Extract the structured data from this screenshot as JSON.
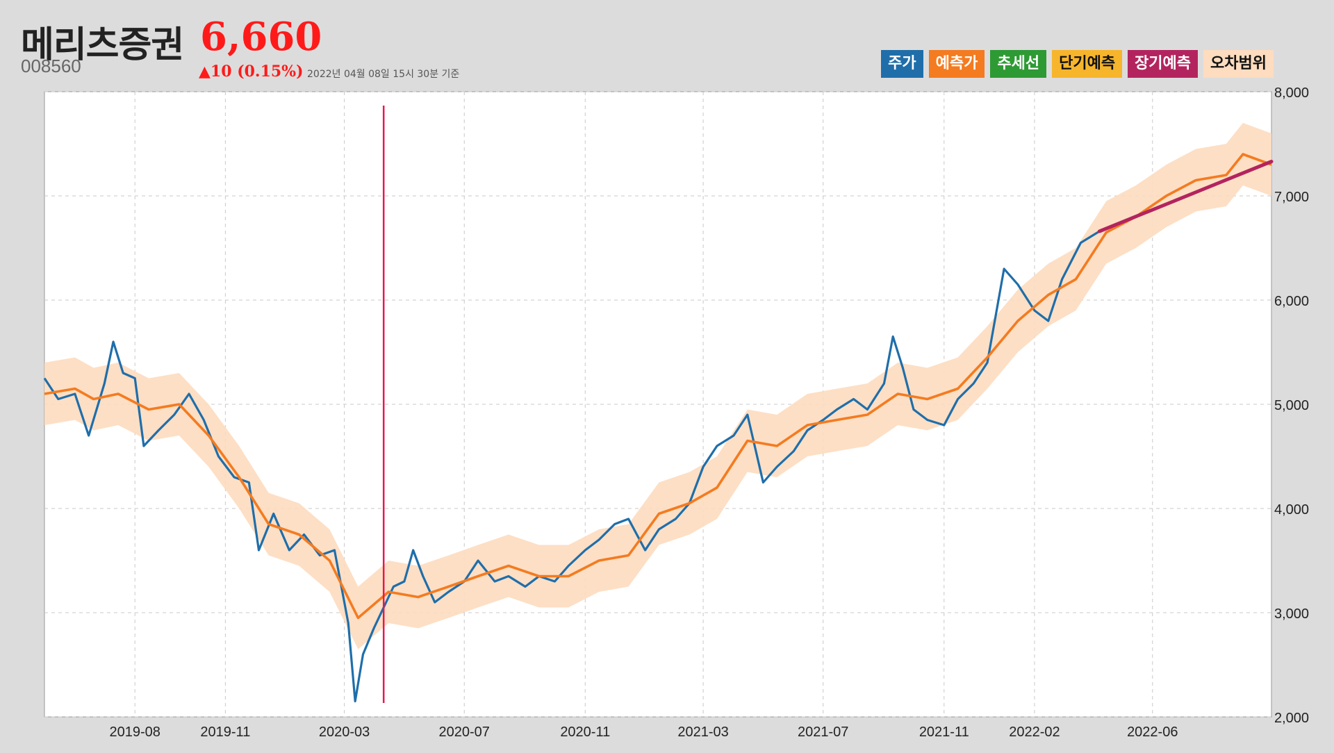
{
  "header": {
    "stock_name": "메리츠증권",
    "price": "6,660",
    "code": "008560",
    "change": "▲10 (0.15%)",
    "as_of": "2022년 04월 08일 15시 30분 기준"
  },
  "legend": [
    {
      "label": "주가",
      "color": "#1f6eaa",
      "text_color": "#ffffff"
    },
    {
      "label": "예측가",
      "color": "#f47b20",
      "text_color": "#ffffff"
    },
    {
      "label": "추세선",
      "color": "#2e9a33",
      "text_color": "#ffffff"
    },
    {
      "label": "단기예측",
      "color": "#f7b52c",
      "text_color": "#111111"
    },
    {
      "label": "장기예측",
      "color": "#b3245e",
      "text_color": "#ffffff"
    },
    {
      "label": "오차범위",
      "color": "#fddcbf",
      "text_color": "#111111"
    }
  ],
  "chart_data": {
    "type": "line",
    "x_axis": {
      "range": [
        "2019-05-01",
        "2022-09-30"
      ],
      "ticks": [
        "2019-08-01",
        "2019-11-01",
        "2020-03-01",
        "2020-07-01",
        "2020-11-01",
        "2021-03-01",
        "2021-07-01",
        "2021-11-01",
        "2022-02-01",
        "2022-06-01"
      ],
      "tick_labels": [
        "2019-08",
        "2019-11",
        "2020-03",
        "2020-07",
        "2020-11",
        "2021-03",
        "2021-07",
        "2021-11",
        "2022-02",
        "2022-06"
      ]
    },
    "y_axis": {
      "range": [
        2000,
        8000
      ],
      "ticks": [
        2000,
        3000,
        4000,
        5000,
        6000,
        7000,
        8000
      ],
      "tick_labels": [
        "2,000",
        "3,000",
        "4,000",
        "5,000",
        "6,000",
        "7,000",
        "8,000"
      ],
      "position": "right"
    },
    "grid": true,
    "marker_line": {
      "date": "2020-04-10",
      "color": "#e8174f"
    },
    "series": [
      {
        "name": "주가",
        "color": "#1f6eaa",
        "points": [
          [
            "2019-05-01",
            5250
          ],
          [
            "2019-05-15",
            5050
          ],
          [
            "2019-06-01",
            5100
          ],
          [
            "2019-06-15",
            4700
          ],
          [
            "2019-07-01",
            5200
          ],
          [
            "2019-07-10",
            5600
          ],
          [
            "2019-07-20",
            5300
          ],
          [
            "2019-08-01",
            5250
          ],
          [
            "2019-08-10",
            4600
          ],
          [
            "2019-08-25",
            4750
          ],
          [
            "2019-09-10",
            4900
          ],
          [
            "2019-09-25",
            5100
          ],
          [
            "2019-10-10",
            4850
          ],
          [
            "2019-10-25",
            4500
          ],
          [
            "2019-11-10",
            4300
          ],
          [
            "2019-11-25",
            4250
          ],
          [
            "2019-12-05",
            3600
          ],
          [
            "2019-12-20",
            3950
          ],
          [
            "2020-01-05",
            3600
          ],
          [
            "2020-01-20",
            3750
          ],
          [
            "2020-02-05",
            3550
          ],
          [
            "2020-02-20",
            3600
          ],
          [
            "2020-03-05",
            2900
          ],
          [
            "2020-03-12",
            2150
          ],
          [
            "2020-03-20",
            2600
          ],
          [
            "2020-03-31",
            2850
          ],
          [
            "2020-04-10",
            3050
          ],
          [
            "2020-04-20",
            3250
          ],
          [
            "2020-05-01",
            3300
          ],
          [
            "2020-05-10",
            3600
          ],
          [
            "2020-05-20",
            3350
          ],
          [
            "2020-06-01",
            3100
          ],
          [
            "2020-06-15",
            3200
          ],
          [
            "2020-07-01",
            3300
          ],
          [
            "2020-07-15",
            3500
          ],
          [
            "2020-08-01",
            3300
          ],
          [
            "2020-08-15",
            3350
          ],
          [
            "2020-09-01",
            3250
          ],
          [
            "2020-09-15",
            3350
          ],
          [
            "2020-10-01",
            3300
          ],
          [
            "2020-10-15",
            3450
          ],
          [
            "2020-11-01",
            3600
          ],
          [
            "2020-11-15",
            3700
          ],
          [
            "2020-12-01",
            3850
          ],
          [
            "2020-12-15",
            3900
          ],
          [
            "2021-01-01",
            3600
          ],
          [
            "2021-01-15",
            3800
          ],
          [
            "2021-02-01",
            3900
          ],
          [
            "2021-02-15",
            4050
          ],
          [
            "2021-03-01",
            4400
          ],
          [
            "2021-03-15",
            4600
          ],
          [
            "2021-04-01",
            4700
          ],
          [
            "2021-04-15",
            4900
          ],
          [
            "2021-05-01",
            4250
          ],
          [
            "2021-05-15",
            4400
          ],
          [
            "2021-06-01",
            4550
          ],
          [
            "2021-06-15",
            4750
          ],
          [
            "2021-07-01",
            4850
          ],
          [
            "2021-07-15",
            4950
          ],
          [
            "2021-08-01",
            5050
          ],
          [
            "2021-08-15",
            4950
          ],
          [
            "2021-09-01",
            5200
          ],
          [
            "2021-09-10",
            5650
          ],
          [
            "2021-09-20",
            5350
          ],
          [
            "2021-10-01",
            4950
          ],
          [
            "2021-10-15",
            4850
          ],
          [
            "2021-11-01",
            4800
          ],
          [
            "2021-11-15",
            5050
          ],
          [
            "2021-12-01",
            5200
          ],
          [
            "2021-12-15",
            5400
          ],
          [
            "2022-01-01",
            6300
          ],
          [
            "2022-01-15",
            6150
          ],
          [
            "2022-02-01",
            5900
          ],
          [
            "2022-02-15",
            5800
          ],
          [
            "2022-03-01",
            6200
          ],
          [
            "2022-03-20",
            6550
          ],
          [
            "2022-04-08",
            6660
          ]
        ]
      },
      {
        "name": "예측가",
        "color": "#f47b20",
        "points": [
          [
            "2019-05-01",
            5100
          ],
          [
            "2019-06-01",
            5150
          ],
          [
            "2019-06-20",
            5050
          ],
          [
            "2019-07-15",
            5100
          ],
          [
            "2019-08-15",
            4950
          ],
          [
            "2019-09-15",
            5000
          ],
          [
            "2019-10-15",
            4700
          ],
          [
            "2019-11-15",
            4300
          ],
          [
            "2019-12-15",
            3850
          ],
          [
            "2020-01-15",
            3750
          ],
          [
            "2020-02-15",
            3500
          ],
          [
            "2020-03-15",
            2950
          ],
          [
            "2020-04-15",
            3200
          ],
          [
            "2020-05-15",
            3150
          ],
          [
            "2020-06-15",
            3250
          ],
          [
            "2020-07-15",
            3350
          ],
          [
            "2020-08-15",
            3450
          ],
          [
            "2020-09-15",
            3350
          ],
          [
            "2020-10-15",
            3350
          ],
          [
            "2020-11-15",
            3500
          ],
          [
            "2020-12-15",
            3550
          ],
          [
            "2021-01-15",
            3950
          ],
          [
            "2021-02-15",
            4050
          ],
          [
            "2021-03-15",
            4200
          ],
          [
            "2021-04-15",
            4650
          ],
          [
            "2021-05-15",
            4600
          ],
          [
            "2021-06-15",
            4800
          ],
          [
            "2021-07-15",
            4850
          ],
          [
            "2021-08-15",
            4900
          ],
          [
            "2021-09-15",
            5100
          ],
          [
            "2021-10-15",
            5050
          ],
          [
            "2021-11-15",
            5150
          ],
          [
            "2021-12-15",
            5450
          ],
          [
            "2022-01-15",
            5800
          ],
          [
            "2022-02-15",
            6050
          ],
          [
            "2022-03-15",
            6200
          ],
          [
            "2022-04-15",
            6650
          ],
          [
            "2022-05-15",
            6800
          ],
          [
            "2022-06-15",
            7000
          ],
          [
            "2022-07-15",
            7150
          ],
          [
            "2022-08-15",
            7200
          ],
          [
            "2022-09-01",
            7400
          ],
          [
            "2022-09-30",
            7300
          ]
        ]
      },
      {
        "name": "장기예측",
        "color": "#b3245e",
        "points": [
          [
            "2022-04-08",
            6660
          ],
          [
            "2022-09-30",
            7330
          ]
        ]
      }
    ],
    "band": {
      "name": "오차범위",
      "color": "#fddcbf",
      "half_width": 300
    }
  }
}
